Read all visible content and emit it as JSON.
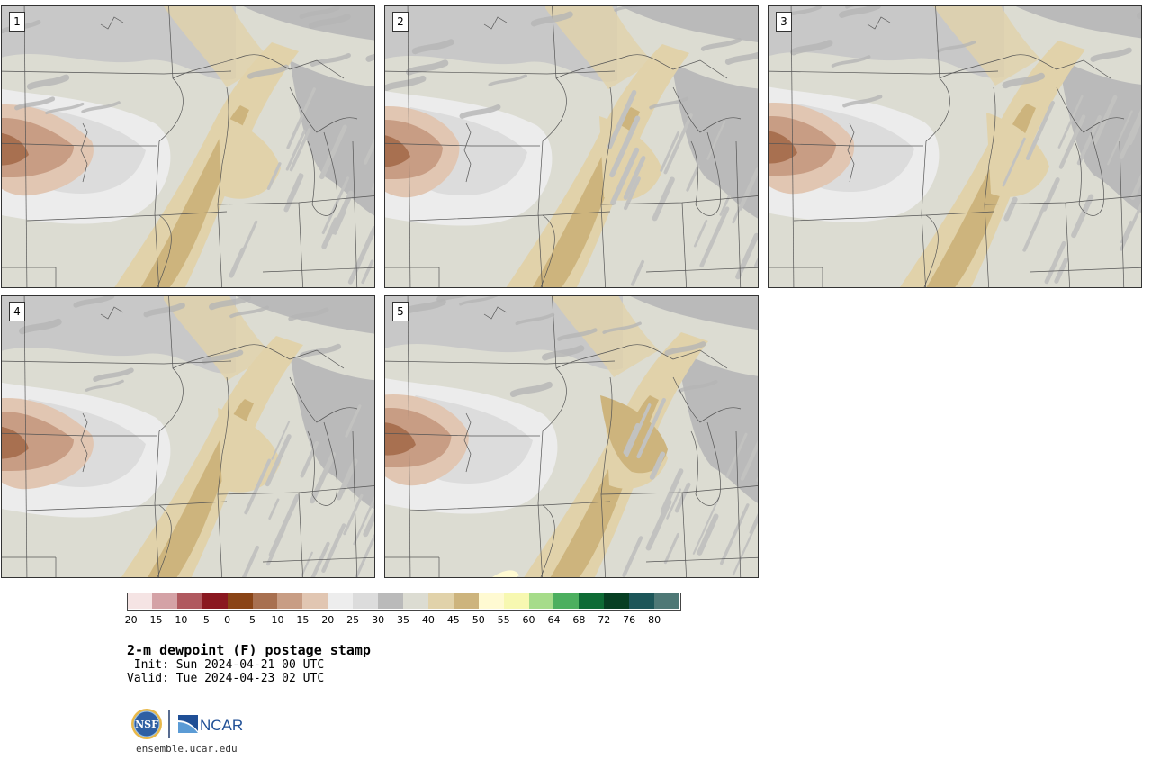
{
  "panels": [
    {
      "label": "1"
    },
    {
      "label": "2"
    },
    {
      "label": "3"
    },
    {
      "label": "4"
    },
    {
      "label": "5"
    }
  ],
  "colorbar": {
    "colors": [
      "#f5e4e4",
      "#d4a2a6",
      "#b0595f",
      "#8a1820",
      "#8a4416",
      "#a87050",
      "#c89d84",
      "#e1c6b2",
      "#ededed",
      "#dcdcdc",
      "#bababa",
      "#dcdcd2",
      "#e1d2aa",
      "#cdb47d",
      "#fffad2",
      "#f7f8b1",
      "#a6dc8a",
      "#4caf5f",
      "#0e6b35",
      "#073f23",
      "#1d5659",
      "#4e7876"
    ],
    "ticks": [
      "−20",
      "−15",
      "−10",
      "−5",
      "0",
      "5",
      "10",
      "15",
      "20",
      "25",
      "30",
      "35",
      "40",
      "45",
      "50",
      "55",
      "60",
      "64",
      "68",
      "72",
      "76",
      "80"
    ]
  },
  "title": "2-m dewpoint (F) postage stamp",
  "init": " Init: Sun 2024-04-21 00 UTC",
  "valid": "Valid: Tue 2024-04-23 02 UTC",
  "logo": {
    "nsf": "NSF",
    "ncar": "NCAR"
  },
  "url": "ensemble.ucar.edu"
}
